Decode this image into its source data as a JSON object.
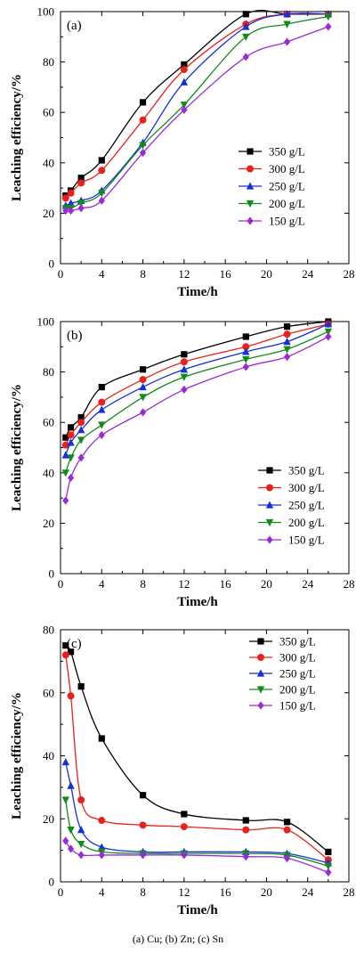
{
  "caption": "(a) Cu; (b) Zn; (c) Sn",
  "chart_data": [
    {
      "type": "line",
      "panel_label": "(a)",
      "xlabel": "Time/h",
      "ylabel": "Leaching efficiency/%",
      "xlim": [
        0,
        28
      ],
      "ylim": [
        0,
        100
      ],
      "xticks": [
        "0",
        "4",
        "8",
        "12",
        "16",
        "20",
        "24",
        "28"
      ],
      "yticks": [
        "0",
        "20",
        "40",
        "60",
        "80",
        "100"
      ],
      "legend_position": "right-middle",
      "grid": false,
      "x": [
        0.5,
        1,
        2,
        4,
        8,
        12,
        18,
        22,
        26
      ],
      "series": [
        {
          "name": "350 g/L",
          "marker": "square",
          "color": "#000000",
          "values": [
            27,
            29,
            34,
            41,
            64,
            79,
            99,
            99,
            99
          ]
        },
        {
          "name": "300 g/L",
          "marker": "circle",
          "color": "#e8211c",
          "values": [
            26,
            28,
            32,
            37,
            57,
            77,
            95,
            99,
            99
          ]
        },
        {
          "name": "250 g/L",
          "marker": "triangle-up",
          "color": "#1530d8",
          "values": [
            23,
            24,
            25,
            29,
            48,
            72,
            94,
            99,
            99
          ]
        },
        {
          "name": "200 g/L",
          "marker": "triangle-down",
          "color": "#118c1a",
          "values": [
            22,
            22,
            24,
            28,
            47,
            63,
            90,
            95,
            98
          ]
        },
        {
          "name": "150 g/L",
          "marker": "diamond",
          "color": "#9a2bd4",
          "values": [
            21,
            21,
            22,
            25,
            44,
            61,
            82,
            88,
            94
          ]
        }
      ]
    },
    {
      "type": "line",
      "panel_label": "(b)",
      "xlabel": "Time/h",
      "ylabel": "Leaching efficiency/%",
      "xlim": [
        0,
        28
      ],
      "ylim": [
        0,
        100
      ],
      "xticks": [
        "0",
        "4",
        "8",
        "12",
        "16",
        "20",
        "24",
        "28"
      ],
      "yticks": [
        "0",
        "20",
        "40",
        "60",
        "80",
        "100"
      ],
      "legend_position": "bottom-right",
      "grid": false,
      "x": [
        0.5,
        1,
        2,
        4,
        8,
        12,
        18,
        22,
        26
      ],
      "series": [
        {
          "name": "350 g/L",
          "marker": "square",
          "color": "#000000",
          "values": [
            54,
            58,
            62,
            74,
            81,
            87,
            94,
            98,
            100
          ]
        },
        {
          "name": "300 g/L",
          "marker": "circle",
          "color": "#e8211c",
          "values": [
            51,
            55,
            60,
            68,
            77,
            84,
            90,
            95,
            99
          ]
        },
        {
          "name": "250 g/L",
          "marker": "triangle-up",
          "color": "#1530d8",
          "values": [
            47,
            52,
            57,
            65,
            74,
            81,
            88,
            92,
            99
          ]
        },
        {
          "name": "200 g/L",
          "marker": "triangle-down",
          "color": "#118c1a",
          "values": [
            40,
            46,
            53,
            59,
            70,
            78,
            85,
            89,
            96
          ]
        },
        {
          "name": "150 g/L",
          "marker": "diamond",
          "color": "#9a2bd4",
          "values": [
            29,
            38,
            46,
            55,
            64,
            73,
            82,
            86,
            94
          ]
        }
      ]
    },
    {
      "type": "line",
      "panel_label": "(c)",
      "xlabel": "Time/h",
      "ylabel": "Leaching efficiency/%",
      "xlim": [
        0,
        28
      ],
      "ylim": [
        0,
        80
      ],
      "xticks": [
        "0",
        "4",
        "8",
        "12",
        "16",
        "20",
        "24",
        "28"
      ],
      "yticks": [
        "0",
        "20",
        "40",
        "60",
        "80"
      ],
      "legend_position": "top-right",
      "grid": false,
      "x": [
        0.5,
        1,
        2,
        4,
        8,
        12,
        18,
        22,
        26
      ],
      "series": [
        {
          "name": "350 g/L",
          "marker": "square",
          "color": "#000000",
          "values": [
            75,
            73,
            62,
            45.5,
            27.5,
            21.5,
            19.5,
            19,
            9.5
          ]
        },
        {
          "name": "300 g/L",
          "marker": "circle",
          "color": "#e8211c",
          "values": [
            72,
            59,
            26,
            19.5,
            18,
            17.5,
            16.5,
            16.5,
            7
          ]
        },
        {
          "name": "250 g/L",
          "marker": "triangle-up",
          "color": "#1530d8",
          "values": [
            38,
            30.5,
            16.5,
            11,
            9.5,
            9.5,
            9.5,
            9,
            6
          ]
        },
        {
          "name": "200 g/L",
          "marker": "triangle-down",
          "color": "#118c1a",
          "values": [
            26,
            16.5,
            12,
            9.5,
            9,
            9,
            9,
            8.5,
            5
          ]
        },
        {
          "name": "150 g/L",
          "marker": "diamond",
          "color": "#9a2bd4",
          "values": [
            13,
            10.5,
            8.5,
            8.5,
            8.5,
            8.5,
            8,
            7.5,
            3
          ]
        }
      ]
    }
  ]
}
